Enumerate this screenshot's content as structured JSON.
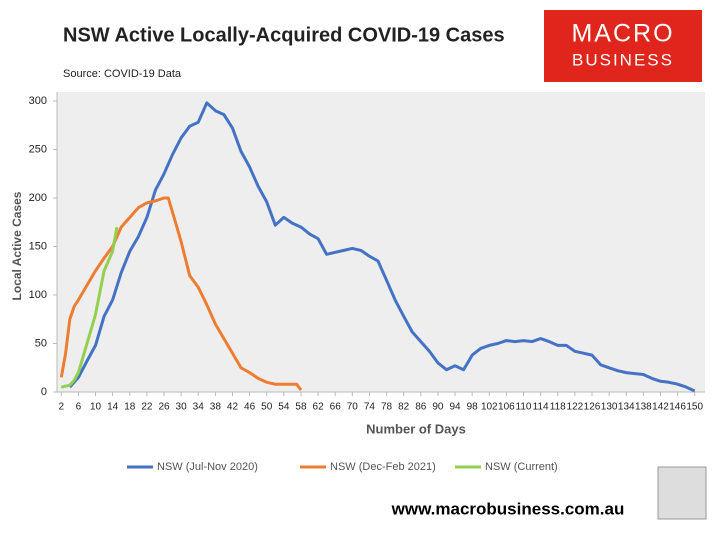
{
  "chart_data": {
    "type": "line",
    "title": "NSW Active Locally-Acquired COVID-19 Cases",
    "subtitle": "Source: COVID-19 Data",
    "x_label": "Number of Days",
    "y_label": "Local Active Cases",
    "logo": {
      "line1": "MACRO",
      "line2": "BUSINESS"
    },
    "website": "www.macrobusiness.com.au",
    "xlim": [
      1,
      152.4
    ],
    "ylim": [
      0,
      300
    ],
    "xticks": [
      2,
      6,
      10,
      14,
      18,
      22,
      26,
      30,
      34,
      38,
      42,
      46,
      50,
      54,
      58,
      62,
      66,
      70,
      74,
      78,
      82,
      86,
      90,
      94,
      98,
      102,
      106,
      110,
      114,
      118,
      122,
      126,
      130,
      134,
      138,
      142,
      146,
      150
    ],
    "yticks": [
      0,
      50,
      100,
      150,
      200,
      250,
      300
    ],
    "grid": false,
    "legend": "bottom",
    "series": [
      {
        "name": "NSW (Jul-Nov 2020)",
        "color": "#4472c4",
        "x": [
          4,
          6,
          8,
          10,
          12,
          14,
          16,
          18,
          20,
          22,
          24,
          26,
          28,
          30,
          32,
          34,
          36,
          38,
          40,
          42,
          44,
          46,
          48,
          50,
          52,
          54,
          56,
          58,
          60,
          62,
          64,
          66,
          68,
          70,
          72,
          74,
          76,
          78,
          80,
          82,
          84,
          86,
          88,
          90,
          92,
          94,
          96,
          98,
          100,
          102,
          104,
          106,
          108,
          110,
          112,
          114,
          116,
          118,
          120,
          122,
          124,
          126,
          128,
          130,
          132,
          134,
          136,
          138,
          140,
          142,
          144,
          146,
          148,
          150
        ],
        "values": [
          5,
          15,
          32,
          48,
          78,
          95,
          123,
          145,
          160,
          180,
          208,
          225,
          245,
          262,
          274,
          278,
          298,
          290,
          286,
          272,
          248,
          232,
          212,
          196,
          172,
          180,
          174,
          170,
          163,
          158,
          142,
          144,
          146,
          148,
          146,
          140,
          135,
          115,
          95,
          78,
          62,
          52,
          42,
          30,
          23,
          27,
          23,
          38,
          45,
          48,
          50,
          53,
          52,
          53,
          52,
          55,
          52,
          48,
          48,
          42,
          40,
          38,
          28,
          25,
          22,
          20,
          19,
          18,
          14,
          11,
          10,
          8,
          5,
          1
        ]
      },
      {
        "name": "NSW (Dec-Feb 2021)",
        "color": "#ed7d31",
        "x": [
          2,
          3,
          4,
          5,
          6,
          8,
          10,
          12,
          14,
          16,
          18,
          20,
          22,
          24,
          26,
          27,
          28,
          30,
          32,
          34,
          36,
          38,
          40,
          42,
          44,
          46,
          48,
          50,
          52,
          54,
          56,
          57,
          58
        ],
        "values": [
          15,
          40,
          75,
          88,
          95,
          110,
          125,
          138,
          150,
          170,
          180,
          190,
          195,
          197,
          200,
          200,
          185,
          155,
          120,
          108,
          90,
          70,
          55,
          40,
          25,
          20,
          14,
          10,
          8,
          8,
          8,
          8,
          2
        ]
      },
      {
        "name": "NSW (Current)",
        "color": "#92d050",
        "x": [
          2,
          4,
          5,
          6,
          8,
          10,
          12,
          14,
          15
        ],
        "values": [
          5,
          7,
          12,
          20,
          50,
          80,
          125,
          145,
          170
        ]
      }
    ]
  }
}
